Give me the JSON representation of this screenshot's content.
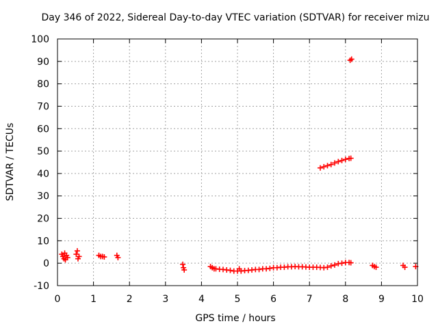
{
  "chart_data": {
    "type": "scatter",
    "title": "Day 346 of 2022, Sidereal Day-to-day VTEC variation (SDTVAR) for receiver mizu",
    "xlabel": "GPS time / hours",
    "ylabel": "SDTVAR / TECUs",
    "xlim": [
      0,
      10
    ],
    "ylim": [
      -10,
      100
    ],
    "xticks": [
      "0",
      "1",
      "2",
      "3",
      "4",
      "5",
      "6",
      "7",
      "8",
      "9",
      "10"
    ],
    "yticks": [
      "-10",
      "0",
      "10",
      "20",
      "30",
      "40",
      "50",
      "60",
      "70",
      "80",
      "90",
      "100"
    ],
    "grid": true,
    "marker": "plus",
    "series": [
      {
        "name": "SDTVAR",
        "color": "#ff0000",
        "points": [
          [
            0.12,
            4
          ],
          [
            0.15,
            3
          ],
          [
            0.18,
            2
          ],
          [
            0.2,
            4.5
          ],
          [
            0.22,
            1.5
          ],
          [
            0.25,
            3.5
          ],
          [
            0.28,
            2.5
          ],
          [
            0.52,
            4
          ],
          [
            0.55,
            5.5
          ],
          [
            0.57,
            2
          ],
          [
            0.6,
            3
          ],
          [
            1.15,
            3.5
          ],
          [
            1.2,
            3
          ],
          [
            1.25,
            3
          ],
          [
            1.3,
            2.8
          ],
          [
            1.65,
            3.5
          ],
          [
            1.68,
            2.5
          ],
          [
            3.48,
            -0.5
          ],
          [
            3.5,
            -2
          ],
          [
            3.52,
            -3
          ],
          [
            4.25,
            -1.5
          ],
          [
            4.3,
            -2
          ],
          [
            4.35,
            -2.5
          ],
          [
            4.4,
            -2.5
          ],
          [
            4.5,
            -2.7
          ],
          [
            4.6,
            -2.8
          ],
          [
            4.7,
            -3
          ],
          [
            4.8,
            -3.2
          ],
          [
            4.9,
            -3.5
          ],
          [
            5.0,
            -3.5
          ],
          [
            5.05,
            -2.5
          ],
          [
            5.1,
            -3.5
          ],
          [
            5.2,
            -3.3
          ],
          [
            5.3,
            -3.2
          ],
          [
            5.4,
            -3.0
          ],
          [
            5.5,
            -2.8
          ],
          [
            5.6,
            -2.8
          ],
          [
            5.7,
            -2.5
          ],
          [
            5.8,
            -2.5
          ],
          [
            5.9,
            -2.3
          ],
          [
            6.0,
            -2
          ],
          [
            6.1,
            -2
          ],
          [
            6.2,
            -1.8
          ],
          [
            6.3,
            -1.8
          ],
          [
            6.4,
            -1.6
          ],
          [
            6.5,
            -1.6
          ],
          [
            6.6,
            -1.5
          ],
          [
            6.7,
            -1.6
          ],
          [
            6.8,
            -1.6
          ],
          [
            6.9,
            -1.7
          ],
          [
            7.0,
            -1.8
          ],
          [
            7.1,
            -1.8
          ],
          [
            7.2,
            -1.8
          ],
          [
            7.3,
            -1.9
          ],
          [
            7.4,
            -2
          ],
          [
            7.5,
            -1.8
          ],
          [
            7.6,
            -1.2
          ],
          [
            7.7,
            -0.8
          ],
          [
            7.8,
            -0.2
          ],
          [
            7.9,
            0
          ],
          [
            8.0,
            0.3
          ],
          [
            8.1,
            0.3
          ],
          [
            8.15,
            0.2
          ],
          [
            7.3,
            42.5
          ],
          [
            7.4,
            43
          ],
          [
            7.5,
            43.5
          ],
          [
            7.6,
            44
          ],
          [
            7.7,
            44.7
          ],
          [
            7.8,
            45.3
          ],
          [
            7.9,
            45.8
          ],
          [
            8.0,
            46.3
          ],
          [
            8.1,
            46.7
          ],
          [
            8.15,
            46.8
          ],
          [
            8.13,
            90.5
          ],
          [
            8.17,
            91
          ],
          [
            8.75,
            -1
          ],
          [
            8.8,
            -1.5
          ],
          [
            8.85,
            -1.8
          ],
          [
            9.6,
            -1
          ],
          [
            9.65,
            -1.8
          ],
          [
            9.95,
            -1.5
          ]
        ]
      }
    ]
  }
}
